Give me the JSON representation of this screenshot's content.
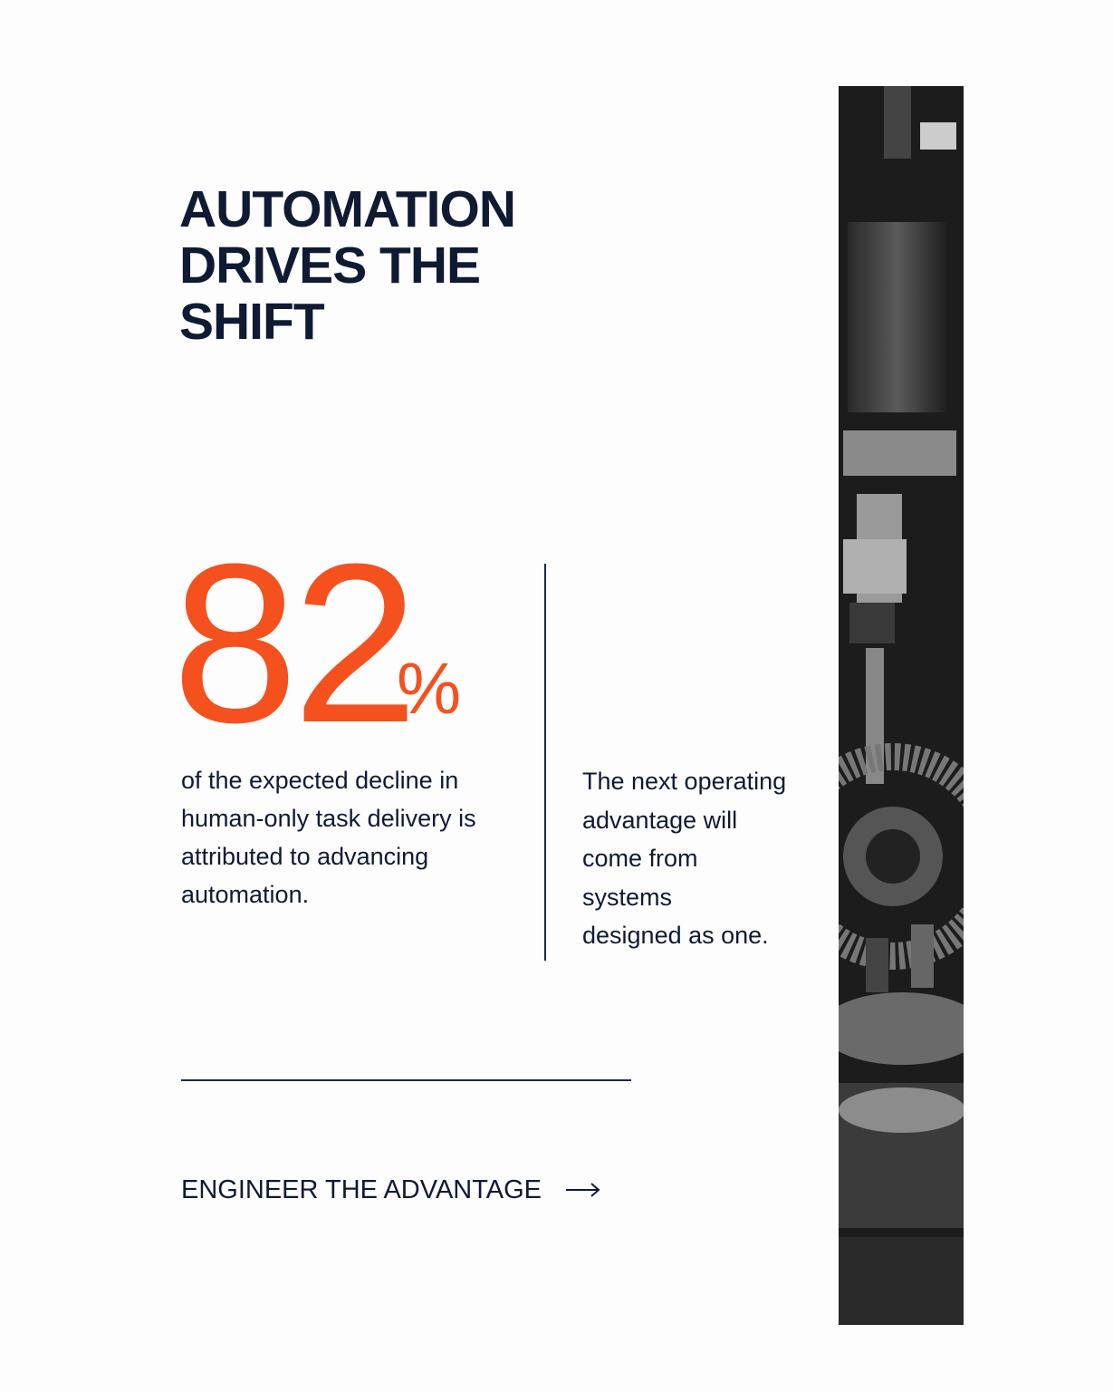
{
  "title": {
    "lines": [
      "AUTOMATION",
      "DRIVES THE",
      "SHIFT"
    ]
  },
  "stat": {
    "number": 82,
    "unit": "%"
  },
  "description": {
    "lines": [
      "of the expected decline in",
      "human-only task delivery is",
      "attributed to advancing",
      "automation."
    ]
  },
  "quote": {
    "lines": [
      "The next operating",
      "advantage will",
      "come from",
      "systems",
      "designed as one."
    ]
  },
  "cta": {
    "label": "ENGINEER THE ADVANTAGE"
  }
}
